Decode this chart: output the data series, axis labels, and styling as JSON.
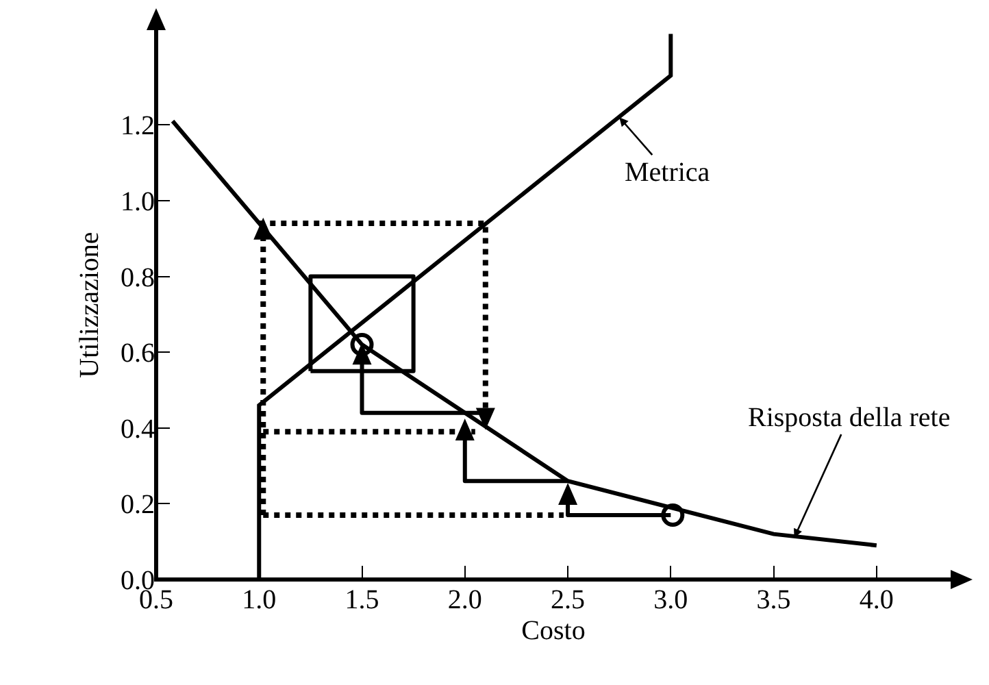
{
  "chart_data": {
    "type": "line",
    "xlabel": "Costo",
    "ylabel": "Utilizzazione",
    "xlim": [
      0.5,
      4.36
    ],
    "ylim": [
      0,
      1.45
    ],
    "xticks": [
      {
        "value": 0.5,
        "label": "0.5"
      },
      {
        "value": 1.0,
        "label": "1.0"
      },
      {
        "value": 1.5,
        "label": "1.5"
      },
      {
        "value": 2.0,
        "label": "2.0"
      },
      {
        "value": 2.5,
        "label": "2.5"
      },
      {
        "value": 3.0,
        "label": "3.0"
      },
      {
        "value": 3.5,
        "label": "3.5"
      },
      {
        "value": 4.0,
        "label": "4.0"
      }
    ],
    "yticks": [
      {
        "value": 0,
        "label": "0.0"
      },
      {
        "value": 0.2,
        "label": "0.2"
      },
      {
        "value": 0.4,
        "label": "0.4"
      },
      {
        "value": 0.6,
        "label": "0.6"
      },
      {
        "value": 0.8,
        "label": "0.8"
      },
      {
        "value": 1.0,
        "label": "1.0"
      },
      {
        "value": 1.2,
        "label": "1.2"
      }
    ],
    "grid": false,
    "series": [
      {
        "color": "#000000",
        "x": [
          0.58,
          1.5,
          2.5,
          3.5,
          4.0
        ],
        "values": [
          1.21,
          0.62,
          0.26,
          0.12,
          0.09
        ],
        "line_style": "solid"
      },
      {
        "color": "#000000",
        "x": [
          1.0,
          1.0,
          3.0,
          3.0
        ],
        "values": [
          0,
          0.46,
          1.33,
          1.44
        ],
        "line_style": "solid"
      },
      {
        "type": "scatter",
        "color": "#000000",
        "marker": "circle",
        "x": [
          1.5,
          3.01
        ],
        "values": [
          0.62,
          0.17
        ]
      }
    ],
    "annotations": [
      {
        "text": "Metrica",
        "x": 2.75,
        "y": 1.22
      },
      {
        "text": "Risposta della rete",
        "x": 3.6,
        "y": 0.11
      }
    ]
  }
}
